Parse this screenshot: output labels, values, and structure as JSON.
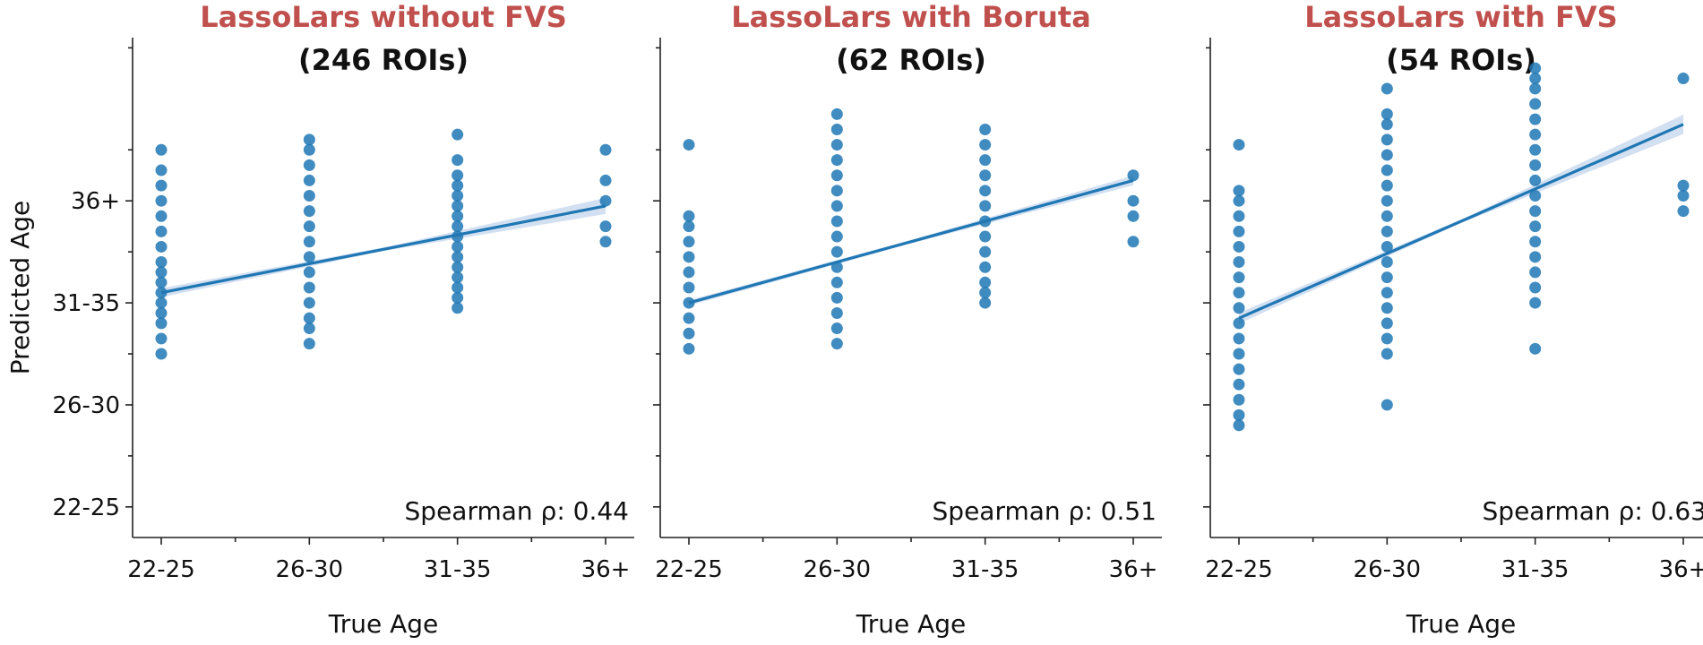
{
  "chart_data": {
    "type": "scatter",
    "shared_y_axis": {
      "label": "Predicted Age",
      "tick_labels": [
        "22-25",
        "26-30",
        "31-35",
        "36+"
      ],
      "ylim": [
        0.7,
        5.6
      ],
      "minor_ticks": true
    },
    "colors": {
      "points": "#1f77b4",
      "line": "#1f77b4",
      "band": "#aec7e8",
      "title_accent": "#c0504d"
    },
    "panels": [
      {
        "title": "LassoLars without FVS",
        "subtitle": "(246 ROIs)",
        "xlabel": "True Age",
        "x_tick_labels": [
          "22-25",
          "26-30",
          "31-35",
          "36+"
        ],
        "annotation": "Spearman ρ: 0.44",
        "fit_line": {
          "x": [
            1,
            4
          ],
          "y": [
            3.1,
            3.95
          ]
        },
        "points": [
          {
            "x": 1,
            "y_values": [
              2.5,
              2.65,
              2.8,
              2.9,
              3.0,
              3.1,
              3.2,
              3.3,
              3.4,
              3.55,
              3.7,
              3.85,
              4.0,
              4.15,
              4.3,
              4.5
            ]
          },
          {
            "x": 2,
            "y_values": [
              2.6,
              2.75,
              2.85,
              3.0,
              3.15,
              3.3,
              3.45,
              3.6,
              3.75,
              3.9,
              4.05,
              4.2,
              4.35,
              4.5,
              4.6
            ]
          },
          {
            "x": 3,
            "y_values": [
              2.95,
              3.05,
              3.15,
              3.25,
              3.35,
              3.45,
              3.55,
              3.65,
              3.75,
              3.85,
              3.95,
              4.05,
              4.15,
              4.25,
              4.4,
              4.65
            ]
          },
          {
            "x": 4,
            "y_values": [
              3.6,
              3.75,
              4.0,
              4.2,
              4.5
            ]
          }
        ]
      },
      {
        "title": "LassoLars with Boruta",
        "subtitle": "(62 ROIs)",
        "xlabel": "True Age",
        "x_tick_labels": [
          "22-25",
          "26-30",
          "31-35",
          "36+"
        ],
        "annotation": "Spearman ρ: 0.51",
        "fit_line": {
          "x": [
            1,
            4
          ],
          "y": [
            3.0,
            4.2
          ]
        },
        "points": [
          {
            "x": 1,
            "y_values": [
              2.55,
              2.7,
              2.85,
              3.0,
              3.15,
              3.3,
              3.45,
              3.6,
              3.75,
              3.85,
              4.55
            ]
          },
          {
            "x": 2,
            "y_values": [
              2.6,
              2.75,
              2.9,
              3.05,
              3.2,
              3.35,
              3.5,
              3.65,
              3.8,
              3.95,
              4.1,
              4.25,
              4.4,
              4.55,
              4.7,
              4.85
            ]
          },
          {
            "x": 3,
            "y_values": [
              3.0,
              3.1,
              3.2,
              3.35,
              3.5,
              3.65,
              3.8,
              3.95,
              4.1,
              4.25,
              4.4,
              4.55,
              4.7
            ]
          },
          {
            "x": 4,
            "y_values": [
              3.6,
              3.85,
              4.0,
              4.25
            ]
          }
        ]
      },
      {
        "title": "LassoLars with FVS",
        "subtitle": "(54 ROIs)",
        "xlabel": "True Age",
        "x_tick_labels": [
          "22-25",
          "26-30",
          "31-35",
          "36+"
        ],
        "annotation": "Spearman ρ: 0.63",
        "fit_line": {
          "x": [
            1,
            4
          ],
          "y": [
            2.85,
            4.75
          ]
        },
        "points": [
          {
            "x": 1,
            "y_values": [
              1.8,
              1.9,
              2.05,
              2.2,
              2.35,
              2.5,
              2.65,
              2.8,
              2.95,
              3.1,
              3.25,
              3.4,
              3.55,
              3.7,
              3.85,
              4.0,
              4.1,
              4.55
            ]
          },
          {
            "x": 2,
            "y_values": [
              2.0,
              2.5,
              2.65,
              2.8,
              2.95,
              3.1,
              3.25,
              3.4,
              3.55,
              3.7,
              3.85,
              4.0,
              4.15,
              4.3,
              4.45,
              4.6,
              4.75,
              4.85,
              5.1
            ]
          },
          {
            "x": 3,
            "y_values": [
              2.55,
              3.0,
              3.15,
              3.3,
              3.45,
              3.6,
              3.75,
              3.9,
              4.05,
              4.2,
              4.35,
              4.5,
              4.65,
              4.8,
              4.95,
              5.1,
              5.2,
              5.3
            ]
          },
          {
            "x": 4,
            "y_values": [
              3.9,
              4.05,
              4.15,
              5.2
            ]
          }
        ]
      }
    ]
  }
}
